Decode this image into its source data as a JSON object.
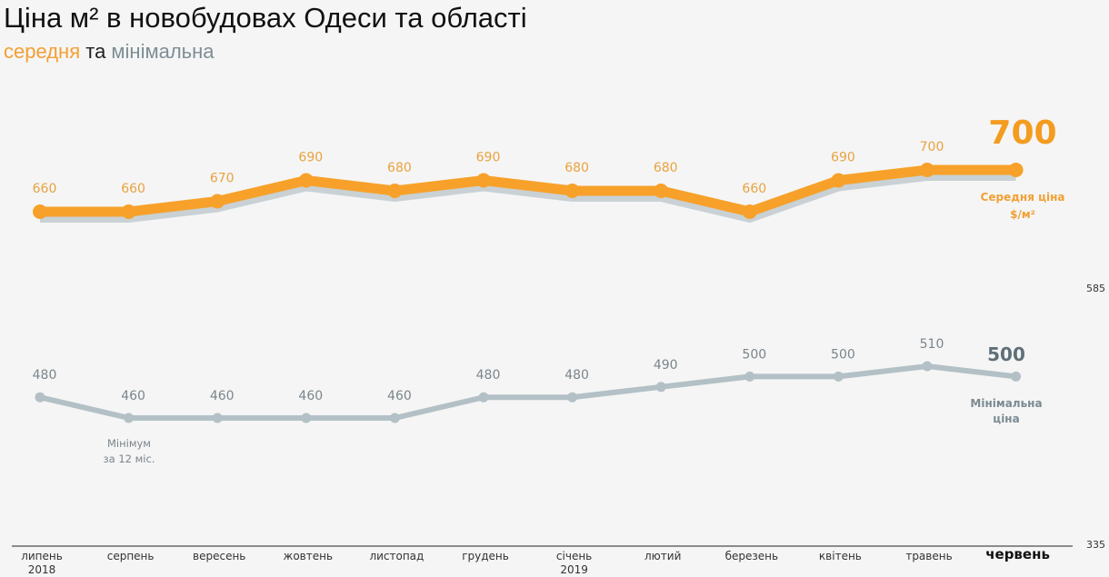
{
  "header": {
    "title": "Ціна м² в новобудовах Одеси та області",
    "subtitle_avg": "середня",
    "subtitle_and": " та ",
    "subtitle_min": "мінімальна"
  },
  "colors": {
    "avg": "#f7a12a",
    "avg_shadow": "#c9d1d5",
    "min": "#b3c0c6",
    "background": "#f5f5f5"
  },
  "axis": {
    "top_value": "585",
    "bottom_value": "335"
  },
  "annotations": {
    "avg_current": "700",
    "avg_label_line1": "Середня ціна",
    "avg_label_line2": "$/м²",
    "min_current": "500",
    "min_label_line1": "Мінімальна",
    "min_label_line2": "ціна",
    "min_note_line1": "Мінімум",
    "min_note_line2": "за 12 міс."
  },
  "chart_data": {
    "type": "line",
    "title": "Ціна м² в новобудовах Одеси та області",
    "subtitle": "середня та мінімальна",
    "xlabel": "",
    "ylabel": "$/м²",
    "categories": [
      "липень 2018",
      "серпень",
      "вересень",
      "жовтень",
      "листопад",
      "грудень",
      "січень 2019",
      "лютий",
      "березень",
      "квітень",
      "травень",
      "червень"
    ],
    "series": [
      {
        "name": "Середня ціна $/м²",
        "values": [
          660,
          660,
          670,
          690,
          680,
          690,
          680,
          680,
          660,
          690,
          700,
          700
        ]
      },
      {
        "name": "Мінімальна ціна",
        "values": [
          480,
          460,
          460,
          460,
          460,
          480,
          480,
          490,
          500,
          500,
          510,
          500
        ]
      }
    ],
    "axis_ticks_right": [
      "585",
      "335"
    ],
    "grid": false,
    "legend_position": "inline-right",
    "annotations": [
      "Мінімум за 12 міс. (серпень, 460)",
      "700 — поточна середня",
      "500 — поточна мінімальна"
    ]
  },
  "months": [
    {
      "label": "липень",
      "year": "2018"
    },
    {
      "label": "серпень",
      "year": ""
    },
    {
      "label": "вересень",
      "year": ""
    },
    {
      "label": "жовтень",
      "year": ""
    },
    {
      "label": "листопад",
      "year": ""
    },
    {
      "label": "грудень",
      "year": ""
    },
    {
      "label": "січень",
      "year": "2019"
    },
    {
      "label": "лютий",
      "year": ""
    },
    {
      "label": "березень",
      "year": ""
    },
    {
      "label": "квітень",
      "year": ""
    },
    {
      "label": "травень",
      "year": ""
    },
    {
      "label": "червень",
      "year": ""
    }
  ]
}
